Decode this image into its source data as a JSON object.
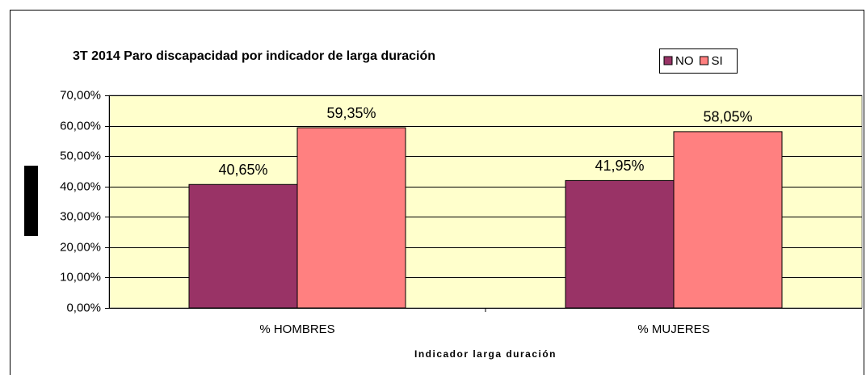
{
  "chart_data": {
    "type": "bar",
    "title": "3T 2014 Paro discapacidad por indicador de larga duración",
    "x_label": "Indicador larga duración",
    "categories": [
      "% HOMBRES",
      "% MUJERES"
    ],
    "series": [
      {
        "name": "NO",
        "color": "#993366",
        "values": [
          40.65,
          41.95
        ],
        "value_labels": [
          "40,65%",
          "41,95%"
        ]
      },
      {
        "name": "SI",
        "color": "#ff8080",
        "values": [
          59.35,
          58.05
        ],
        "value_labels": [
          "59,35%",
          "58,05%"
        ]
      }
    ],
    "ylim": [
      0,
      70
    ],
    "yticks": [
      {
        "value": 0,
        "label": "0,00%"
      },
      {
        "value": 10,
        "label": "10,00%"
      },
      {
        "value": 20,
        "label": "20,00%"
      },
      {
        "value": 30,
        "label": "30,00%"
      },
      {
        "value": 40,
        "label": "40,00%"
      },
      {
        "value": 50,
        "label": "50,00%"
      },
      {
        "value": 60,
        "label": "60,00%"
      },
      {
        "value": 70,
        "label": "70,00%"
      }
    ],
    "grid": true
  }
}
